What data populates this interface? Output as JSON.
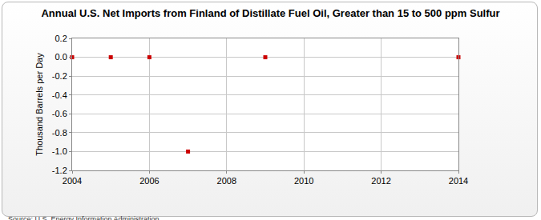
{
  "chart_data": {
    "type": "scatter",
    "title": "Annual U.S. Net Imports from Finland of Distillate Fuel Oil, Greater than 15 to 500 ppm Sulfur",
    "y_label": "Thousand Barrels per Day",
    "annotations": [
      "Source: U.S. Energy Information Administration"
    ],
    "x": [
      2004,
      2005,
      2006,
      2007,
      2009,
      2014
    ],
    "values": [
      0,
      0,
      0,
      -1,
      0,
      0
    ],
    "color": "#cc0000",
    "marker": "square",
    "xlim": [
      2004,
      2014
    ],
    "xticks": [
      2004,
      2006,
      2008,
      2010,
      2012,
      2014
    ],
    "ylim": [
      -1.2,
      0.2
    ],
    "yticks": [
      0.2,
      {
        "value": 0,
        "label": "0.0"
      },
      -0.2,
      -0.4,
      -0.6,
      -0.8,
      {
        "value": -1,
        "label": "-1.0"
      },
      -1.2
    ],
    "grid": true
  }
}
